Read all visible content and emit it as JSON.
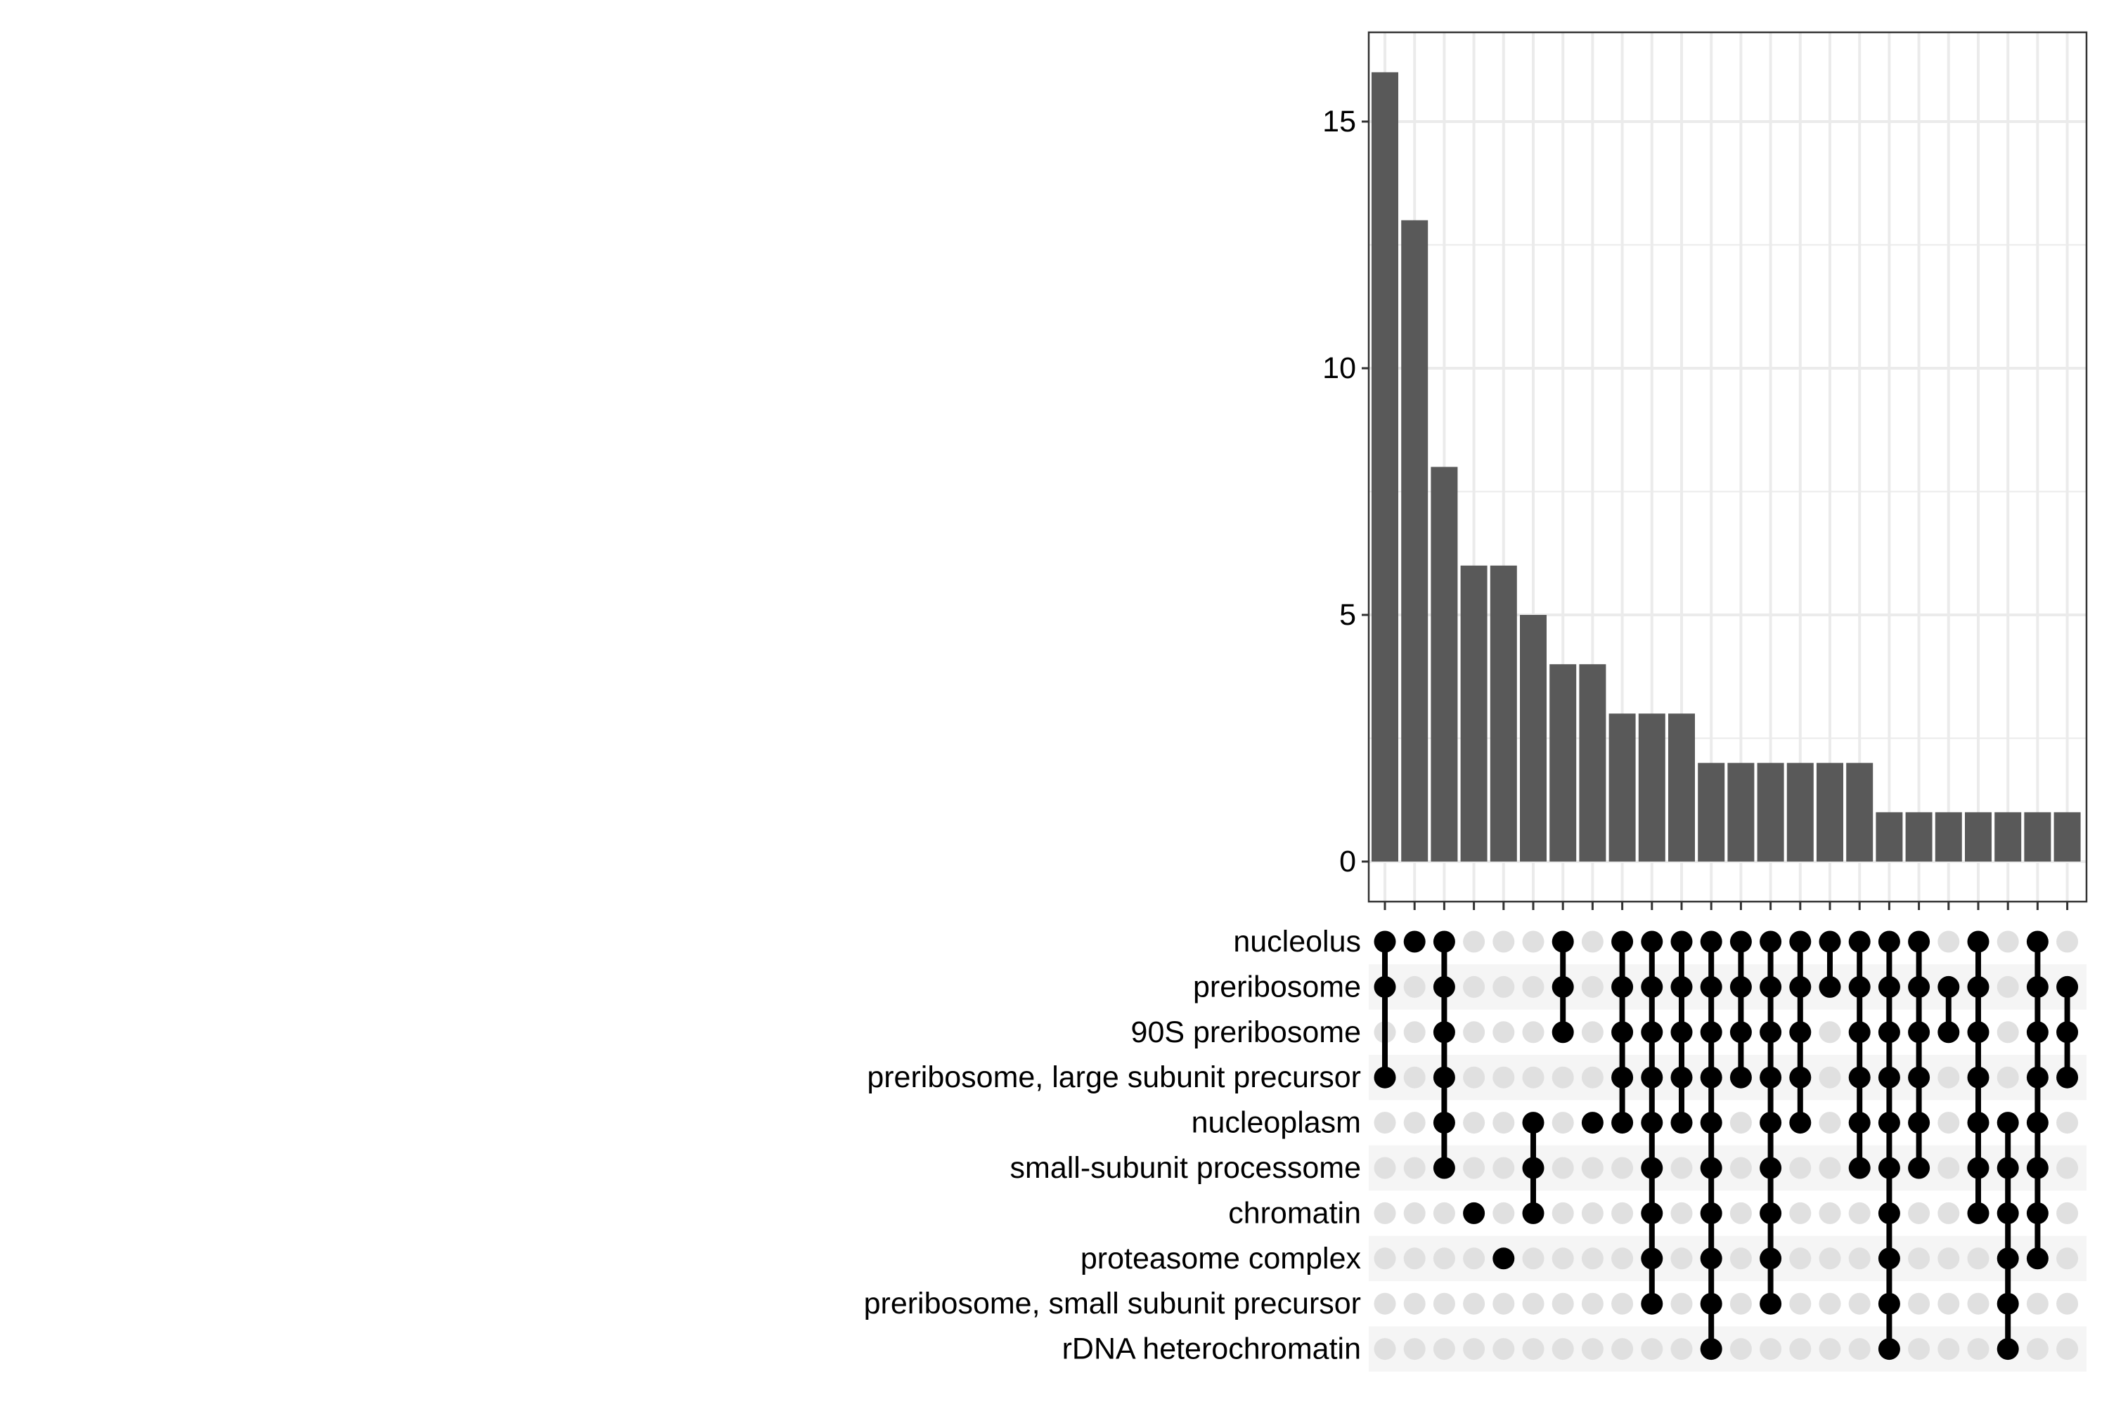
{
  "chart_data": {
    "type": "bar",
    "subtype": "upset",
    "ylim": [
      0,
      16.7
    ],
    "yticks": [
      0,
      5,
      10,
      15
    ],
    "grid": true,
    "sets": [
      "nucleolus",
      "preribosome",
      "90S preribosome",
      "preribosome, large subunit precursor",
      "nucleoplasm",
      "small-subunit processome",
      "chromatin",
      "proteasome complex",
      "preribosome, small subunit precursor",
      "rDNA heterochromatin"
    ],
    "intersections": [
      {
        "sets": [
          "nucleolus",
          "preribosome",
          "preribosome, large subunit precursor"
        ],
        "value": 16
      },
      {
        "sets": [
          "nucleolus"
        ],
        "value": 13
      },
      {
        "sets": [
          "nucleolus",
          "preribosome",
          "90S preribosome",
          "preribosome, large subunit precursor",
          "nucleoplasm",
          "small-subunit processome"
        ],
        "value": 8
      },
      {
        "sets": [
          "chromatin"
        ],
        "value": 6
      },
      {
        "sets": [
          "proteasome complex"
        ],
        "value": 6
      },
      {
        "sets": [
          "nucleoplasm",
          "small-subunit processome",
          "chromatin"
        ],
        "value": 5
      },
      {
        "sets": [
          "nucleolus",
          "preribosome",
          "90S preribosome"
        ],
        "value": 4
      },
      {
        "sets": [
          "nucleoplasm"
        ],
        "value": 4
      },
      {
        "sets": [
          "nucleolus",
          "preribosome",
          "90S preribosome",
          "preribosome, large subunit precursor",
          "nucleoplasm"
        ],
        "value": 3
      },
      {
        "sets": [
          "nucleolus",
          "preribosome",
          "90S preribosome",
          "preribosome, large subunit precursor",
          "nucleoplasm",
          "small-subunit processome",
          "chromatin",
          "proteasome complex",
          "preribosome, small subunit precursor"
        ],
        "value": 3
      },
      {
        "sets": [
          "nucleolus",
          "preribosome",
          "90S preribosome",
          "preribosome, large subunit precursor",
          "nucleoplasm"
        ],
        "value": 3
      },
      {
        "sets": [
          "nucleolus",
          "preribosome",
          "90S preribosome",
          "preribosome, large subunit precursor",
          "nucleoplasm",
          "small-subunit processome",
          "chromatin",
          "proteasome complex",
          "preribosome, small subunit precursor",
          "rDNA heterochromatin"
        ],
        "value": 2
      },
      {
        "sets": [
          "nucleolus",
          "preribosome",
          "90S preribosome",
          "preribosome, large subunit precursor"
        ],
        "value": 2
      },
      {
        "sets": [
          "nucleolus",
          "preribosome",
          "90S preribosome",
          "preribosome, large subunit precursor",
          "nucleoplasm",
          "small-subunit processome",
          "chromatin",
          "proteasome complex",
          "preribosome, small subunit precursor"
        ],
        "value": 2
      },
      {
        "sets": [
          "nucleolus",
          "preribosome",
          "90S preribosome",
          "preribosome, large subunit precursor",
          "nucleoplasm"
        ],
        "value": 2
      },
      {
        "sets": [
          "nucleolus",
          "preribosome"
        ],
        "value": 2
      },
      {
        "sets": [
          "nucleolus",
          "preribosome",
          "90S preribosome",
          "preribosome, large subunit precursor",
          "nucleoplasm",
          "small-subunit processome"
        ],
        "value": 2
      },
      {
        "sets": [
          "nucleolus",
          "preribosome",
          "90S preribosome",
          "preribosome, large subunit precursor",
          "nucleoplasm",
          "small-subunit processome",
          "chromatin",
          "proteasome complex",
          "preribosome, small subunit precursor",
          "rDNA heterochromatin"
        ],
        "value": 1
      },
      {
        "sets": [
          "nucleolus",
          "preribosome",
          "90S preribosome",
          "preribosome, large subunit precursor",
          "nucleoplasm",
          "small-subunit processome"
        ],
        "value": 1
      },
      {
        "sets": [
          "preribosome",
          "90S preribosome"
        ],
        "value": 1
      },
      {
        "sets": [
          "nucleolus",
          "preribosome",
          "90S preribosome",
          "preribosome, large subunit precursor",
          "nucleoplasm",
          "small-subunit processome",
          "chromatin"
        ],
        "value": 1
      },
      {
        "sets": [
          "nucleoplasm",
          "small-subunit processome",
          "chromatin",
          "proteasome complex",
          "preribosome, small subunit precursor",
          "rDNA heterochromatin"
        ],
        "value": 1
      },
      {
        "sets": [
          "nucleolus",
          "preribosome",
          "90S preribosome",
          "preribosome, large subunit precursor",
          "nucleoplasm",
          "small-subunit processome",
          "chromatin",
          "proteasome complex"
        ],
        "value": 1
      },
      {
        "sets": [
          "preribosome",
          "90S preribosome",
          "preribosome, large subunit precursor"
        ],
        "value": 1
      }
    ],
    "colors": {
      "bar": "#595959",
      "dot_on": "#000000",
      "dot_off": "#e0e0e0",
      "grid": "#ebebeb",
      "stripe": "#f5f5f5"
    }
  }
}
